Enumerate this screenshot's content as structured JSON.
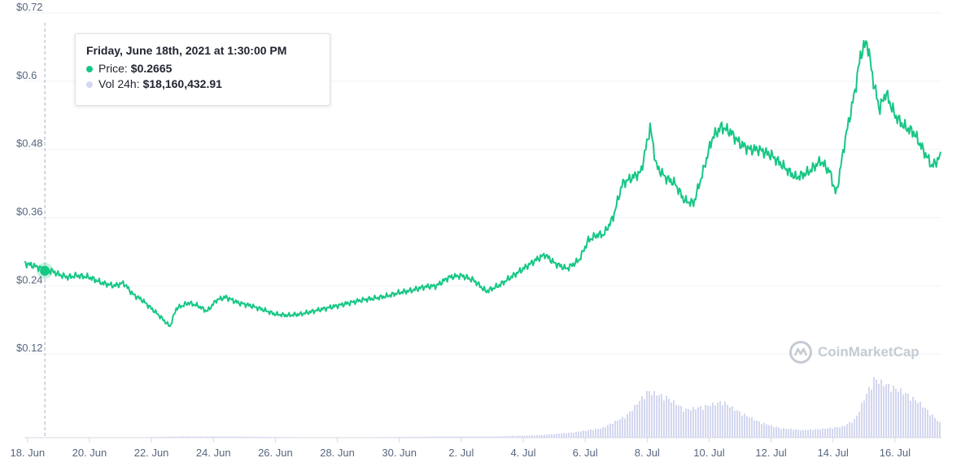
{
  "chart_data": {
    "type": "line",
    "title": "",
    "xlabel": "",
    "ylabel": "",
    "y_ticks": [
      "$0.12",
      "$0.24",
      "$0.36",
      "$0.48",
      "$0.6",
      "$0.72"
    ],
    "y_tick_values": [
      0.12,
      0.24,
      0.36,
      0.48,
      0.6,
      0.72
    ],
    "ylim": [
      0,
      0.72
    ],
    "x_ticks": [
      "18. Jun",
      "20. Jun",
      "22. Jun",
      "24. Jun",
      "26. Jun",
      "28. Jun",
      "30. Jun",
      "2. Jul",
      "4. Jul",
      "6. Jul",
      "8. Jul",
      "10. Jul",
      "12. Jul",
      "14. Jul",
      "16. Jul"
    ],
    "x_tick_days": [
      0,
      2,
      4,
      6,
      8,
      10,
      12,
      14,
      16,
      18,
      20,
      22,
      24,
      26,
      28
    ],
    "xlim_days": [
      -0.1,
      29.5
    ],
    "grid": "horizontal",
    "series": [
      {
        "name": "Price",
        "color": "#16c784",
        "x_days": [
          -0.1,
          0.2,
          0.5,
          0.8,
          1.0,
          1.3,
          1.6,
          2.0,
          2.4,
          2.8,
          3.1,
          3.4,
          3.7,
          4.0,
          4.3,
          4.6,
          4.8,
          5.0,
          5.2,
          5.5,
          5.8,
          6.1,
          6.4,
          6.8,
          7.2,
          7.6,
          8.0,
          8.4,
          8.8,
          9.2,
          9.6,
          10.0,
          10.4,
          10.8,
          11.2,
          11.6,
          12.0,
          12.4,
          12.8,
          13.2,
          13.6,
          14.0,
          14.4,
          14.8,
          15.2,
          15.6,
          16.0,
          16.4,
          16.7,
          17.0,
          17.4,
          17.8,
          18.1,
          18.4,
          18.6,
          18.9,
          19.2,
          19.5,
          19.8,
          20.1,
          20.3,
          20.6,
          20.9,
          21.2,
          21.5,
          21.8,
          22.1,
          22.4,
          22.7,
          23.0,
          23.3,
          23.6,
          24.0,
          24.4,
          24.8,
          25.2,
          25.6,
          25.9,
          26.1,
          26.4,
          26.7,
          26.9,
          27.1,
          27.3,
          27.5,
          27.7,
          28.0,
          28.3,
          28.6,
          28.9,
          29.2,
          29.5
        ],
        "y": [
          0.28,
          0.275,
          0.27,
          0.266,
          0.26,
          0.255,
          0.258,
          0.255,
          0.245,
          0.24,
          0.245,
          0.225,
          0.215,
          0.2,
          0.185,
          0.168,
          0.2,
          0.205,
          0.21,
          0.205,
          0.195,
          0.215,
          0.22,
          0.21,
          0.205,
          0.198,
          0.19,
          0.188,
          0.19,
          0.195,
          0.2,
          0.205,
          0.21,
          0.215,
          0.218,
          0.222,
          0.228,
          0.232,
          0.238,
          0.24,
          0.255,
          0.258,
          0.25,
          0.23,
          0.24,
          0.255,
          0.27,
          0.285,
          0.295,
          0.28,
          0.27,
          0.285,
          0.32,
          0.33,
          0.33,
          0.36,
          0.42,
          0.43,
          0.44,
          0.52,
          0.45,
          0.43,
          0.42,
          0.39,
          0.385,
          0.44,
          0.5,
          0.52,
          0.51,
          0.49,
          0.48,
          0.48,
          0.47,
          0.45,
          0.43,
          0.44,
          0.46,
          0.44,
          0.4,
          0.5,
          0.58,
          0.65,
          0.67,
          0.6,
          0.55,
          0.58,
          0.54,
          0.52,
          0.51,
          0.48,
          0.45,
          0.47
        ]
      },
      {
        "name": "Vol 24h",
        "color": "#d3d7ef",
        "x_days": [
          -0.1,
          3.0,
          5.0,
          6.5,
          10.0,
          13.5,
          15.0,
          16.5,
          17.5,
          18.5,
          19.3,
          20.0,
          20.6,
          21.2,
          21.8,
          22.4,
          23.0,
          23.6,
          24.3,
          25.0,
          25.8,
          26.3,
          26.7,
          27.0,
          27.3,
          27.7,
          28.2,
          28.8,
          29.2,
          29.5
        ],
        "volume_rel": [
          0.0,
          0.0,
          0.02,
          0.02,
          0.0,
          0.02,
          0.02,
          0.04,
          0.08,
          0.15,
          0.35,
          0.75,
          0.65,
          0.45,
          0.5,
          0.58,
          0.4,
          0.25,
          0.15,
          0.12,
          0.15,
          0.18,
          0.3,
          0.65,
          0.95,
          0.85,
          0.75,
          0.55,
          0.35,
          0.2
        ]
      }
    ]
  },
  "tooltip": {
    "date": "Friday, June 18th, 2021 at 1:30:00 PM",
    "price_label": "Price:",
    "price_value": "$0.2665",
    "volume_label": "Vol 24h:",
    "volume_value": "$18,160,432.91",
    "hover_day": 0.56,
    "hover_price": 0.2665
  },
  "watermark": {
    "text": "CoinMarketCap",
    "icon": "coinmarketcap-logo-icon"
  }
}
